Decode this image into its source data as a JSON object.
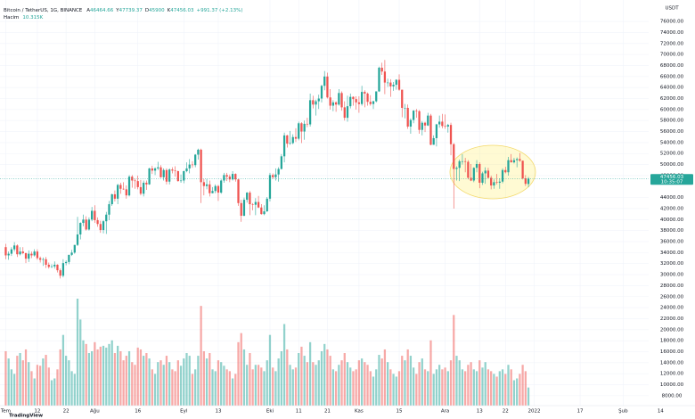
{
  "chart_data": {
    "type": "candlestick",
    "symbol": "Bitcoin / TetherUS, 1G, BINANCE",
    "ohlc_labels": [
      "A",
      "Y",
      "D",
      "K"
    ],
    "change_label": "+991.37 (+2.13%)",
    "volume_label": "Hacim",
    "volume_value_label": "10.315K",
    "currency": "USDT",
    "countdown": "10:35:07",
    "watermark": "TradingView",
    "up_color": "#26a69a",
    "down_color": "#ef5350",
    "grid": true,
    "xlim": [
      -2,
      240
    ],
    "xticks": [
      {
        "value": 0,
        "label": "Tem"
      },
      {
        "value": 11,
        "label": "12"
      },
      {
        "value": 21,
        "label": "22"
      },
      {
        "value": 31,
        "label": "Ağu"
      },
      {
        "value": 46,
        "label": "16"
      },
      {
        "value": 62,
        "label": "Eyl"
      },
      {
        "value": 74,
        "label": "13"
      },
      {
        "value": 92,
        "label": "Eki"
      },
      {
        "value": 102,
        "label": "11"
      },
      {
        "value": 112,
        "label": "21"
      },
      {
        "value": 123,
        "label": "Kas"
      },
      {
        "value": 137,
        "label": "15"
      },
      {
        "value": 153,
        "label": "Ara"
      },
      {
        "value": 165,
        "label": "13"
      },
      {
        "value": 174,
        "label": "22"
      },
      {
        "value": 184,
        "label": "2022"
      },
      {
        "value": 200,
        "label": "17"
      },
      {
        "value": 215,
        "label": "Şub"
      },
      {
        "value": 228,
        "label": "14"
      }
    ],
    "ylim": [
      6200,
      79900
    ],
    "yticks": [
      {
        "value": 8000,
        "label": "8000.00"
      },
      {
        "value": 10000,
        "label": "10000.00"
      },
      {
        "value": 12000,
        "label": "12000.00"
      },
      {
        "value": 14000,
        "label": "14000.00"
      },
      {
        "value": 16000,
        "label": "16000.00"
      },
      {
        "value": 18000,
        "label": "18000.00"
      },
      {
        "value": 20000,
        "label": "20000.00"
      },
      {
        "value": 22000,
        "label": "22000.00"
      },
      {
        "value": 24000,
        "label": "24000.00"
      },
      {
        "value": 26000,
        "label": "26000.00"
      },
      {
        "value": 28000,
        "label": "28000.00"
      },
      {
        "value": 30000,
        "label": "30000.00"
      },
      {
        "value": 32000,
        "label": "32000.00"
      },
      {
        "value": 34000,
        "label": "34000.00"
      },
      {
        "value": 36000,
        "label": "36000.00"
      },
      {
        "value": 38000,
        "label": "38000.00"
      },
      {
        "value": 40000,
        "label": "40000.00"
      },
      {
        "value": 42000,
        "label": "42000.00"
      },
      {
        "value": 44000,
        "label": "44000.00"
      },
      {
        "value": 48000,
        "label": "48000.00"
      },
      {
        "value": 50000,
        "label": "50000.00"
      },
      {
        "value": 52000,
        "label": "52000.00"
      },
      {
        "value": 54000,
        "label": "54000.00"
      },
      {
        "value": 56000,
        "label": "56000.00"
      },
      {
        "value": 58000,
        "label": "58000.00"
      },
      {
        "value": 60000,
        "label": "60000.00"
      },
      {
        "value": 62000,
        "label": "62000.00"
      },
      {
        "value": 64000,
        "label": "64000.00"
      },
      {
        "value": 66000,
        "label": "66000.00"
      },
      {
        "value": 68000,
        "label": "68000.00"
      },
      {
        "value": 70000,
        "label": "70000.00"
      },
      {
        "value": 72000,
        "label": "72000.00"
      },
      {
        "value": 74000,
        "label": "74000.00"
      },
      {
        "value": 76000,
        "label": "76000.00"
      }
    ],
    "candles": [
      [
        35000,
        35600,
        32800,
        33500
      ],
      [
        33500,
        34200,
        32700,
        33800
      ],
      [
        33800,
        35000,
        33400,
        34600
      ],
      [
        34600,
        35900,
        34200,
        35300
      ],
      [
        35300,
        35500,
        33200,
        33700
      ],
      [
        33700,
        35000,
        33500,
        34200
      ],
      [
        34200,
        35000,
        33700,
        33900
      ],
      [
        33900,
        34000,
        32100,
        32900
      ],
      [
        32900,
        34400,
        32300,
        33800
      ],
      [
        33800,
        34200,
        33000,
        33500
      ],
      [
        33500,
        34600,
        33300,
        34200
      ],
      [
        34200,
        34600,
        32700,
        33000
      ],
      [
        33000,
        33300,
        32200,
        32700
      ],
      [
        32700,
        33100,
        31600,
        32800
      ],
      [
        32800,
        33200,
        31200,
        31800
      ],
      [
        31800,
        32200,
        31100,
        31400
      ],
      [
        31400,
        31900,
        31200,
        31500
      ],
      [
        31500,
        32400,
        31100,
        31800
      ],
      [
        31800,
        31900,
        30400,
        30800
      ],
      [
        30800,
        31100,
        29300,
        29800
      ],
      [
        29800,
        32800,
        29500,
        32100
      ],
      [
        32100,
        32600,
        31700,
        32300
      ],
      [
        32300,
        33600,
        31900,
        33600
      ],
      [
        33600,
        34500,
        33400,
        34000
      ],
      [
        34000,
        35400,
        33800,
        35400
      ],
      [
        35400,
        40500,
        35200,
        37300
      ],
      [
        37300,
        39500,
        36400,
        39400
      ],
      [
        39400,
        40900,
        38800,
        40000
      ],
      [
        40000,
        40600,
        38000,
        38200
      ],
      [
        38200,
        40400,
        38000,
        40000
      ],
      [
        40000,
        42300,
        39700,
        41600
      ],
      [
        41600,
        42600,
        39400,
        39900
      ],
      [
        39900,
        40400,
        38700,
        39200
      ],
      [
        39200,
        39800,
        37600,
        38100
      ],
      [
        38100,
        39900,
        37500,
        39700
      ],
      [
        39700,
        41400,
        37400,
        40900
      ],
      [
        40900,
        43400,
        39900,
        42800
      ],
      [
        42800,
        44700,
        42500,
        44600
      ],
      [
        44600,
        45300,
        43300,
        43800
      ],
      [
        43800,
        46500,
        42800,
        46300
      ],
      [
        46300,
        46700,
        44700,
        45600
      ],
      [
        45600,
        46800,
        45400,
        45500
      ],
      [
        45500,
        46200,
        43800,
        44400
      ],
      [
        44400,
        48100,
        44200,
        47800
      ],
      [
        47800,
        48100,
        45800,
        47100
      ],
      [
        47100,
        47400,
        45600,
        47000
      ],
      [
        47000,
        48000,
        45500,
        45900
      ],
      [
        45900,
        47200,
        44400,
        44700
      ],
      [
        44700,
        47100,
        44200,
        46700
      ],
      [
        46700,
        47100,
        45400,
        46400
      ],
      [
        46400,
        49400,
        46300,
        49300
      ],
      [
        49300,
        49800,
        48300,
        48900
      ],
      [
        48900,
        49500,
        48100,
        49300
      ],
      [
        49300,
        50500,
        49000,
        49500
      ],
      [
        49500,
        49900,
        47600,
        47700
      ],
      [
        47700,
        49300,
        47100,
        49000
      ],
      [
        49000,
        49300,
        46400,
        46900
      ],
      [
        46900,
        49300,
        46400,
        49100
      ],
      [
        49100,
        49500,
        48400,
        48900
      ],
      [
        48900,
        49700,
        47800,
        48800
      ],
      [
        48800,
        48900,
        46900,
        47000
      ],
      [
        47000,
        48200,
        46700,
        47100
      ],
      [
        47100,
        48900,
        46600,
        48800
      ],
      [
        48800,
        50400,
        48600,
        49300
      ],
      [
        49300,
        51000,
        48400,
        50000
      ],
      [
        50000,
        50600,
        49400,
        49900
      ],
      [
        49900,
        51900,
        49500,
        51800
      ],
      [
        51800,
        52900,
        50900,
        52700
      ],
      [
        52700,
        52900,
        43000,
        46800
      ],
      [
        46800,
        47400,
        44400,
        46100
      ],
      [
        46100,
        47400,
        45500,
        46400
      ],
      [
        46400,
        47100,
        44200,
        44800
      ],
      [
        44800,
        45900,
        44800,
        45200
      ],
      [
        45200,
        46400,
        44800,
        46100
      ],
      [
        46100,
        46300,
        43400,
        44900
      ],
      [
        44900,
        47300,
        44700,
        47100
      ],
      [
        47100,
        48500,
        46700,
        48100
      ],
      [
        48100,
        48500,
        47000,
        47800
      ],
      [
        47800,
        48200,
        46800,
        47300
      ],
      [
        47300,
        48800,
        47100,
        48300
      ],
      [
        48300,
        48400,
        46900,
        47300
      ],
      [
        47300,
        47400,
        42500,
        43000
      ],
      [
        43000,
        43600,
        39600,
        40700
      ],
      [
        40700,
        44000,
        40600,
        43600
      ],
      [
        43600,
        45000,
        43100,
        44900
      ],
      [
        44900,
        45200,
        40800,
        42800
      ],
      [
        42800,
        43000,
        41700,
        42700
      ],
      [
        42700,
        43900,
        40800,
        43200
      ],
      [
        43200,
        44300,
        42100,
        42200
      ],
      [
        42200,
        42800,
        40900,
        41000
      ],
      [
        41000,
        42600,
        40800,
        41500
      ],
      [
        41500,
        44100,
        41400,
        43800
      ],
      [
        43800,
        48500,
        43300,
        48100
      ],
      [
        48100,
        48400,
        47400,
        47700
      ],
      [
        47700,
        49300,
        47100,
        48200
      ],
      [
        48200,
        49500,
        46900,
        49200
      ],
      [
        49200,
        51900,
        49100,
        51500
      ],
      [
        51500,
        55800,
        50400,
        55300
      ],
      [
        55300,
        55400,
        53100,
        53800
      ],
      [
        53800,
        56100,
        53600,
        53900
      ],
      [
        53900,
        55500,
        53700,
        55000
      ],
      [
        55000,
        56600,
        54100,
        54700
      ],
      [
        54700,
        57800,
        54400,
        57500
      ],
      [
        57500,
        57700,
        53900,
        56000
      ],
      [
        56000,
        58000,
        54500,
        57400
      ],
      [
        57400,
        58500,
        56800,
        57300
      ],
      [
        57300,
        62900,
        56900,
        61700
      ],
      [
        61700,
        62500,
        60200,
        60900
      ],
      [
        60900,
        61800,
        58900,
        61500
      ],
      [
        61500,
        62700,
        60100,
        62000
      ],
      [
        62000,
        64500,
        61300,
        64300
      ],
      [
        64300,
        67000,
        63500,
        66000
      ],
      [
        66000,
        66700,
        62000,
        62200
      ],
      [
        62200,
        63700,
        60000,
        60700
      ],
      [
        60700,
        61700,
        59700,
        61300
      ],
      [
        61300,
        61500,
        59600,
        60900
      ],
      [
        60900,
        63700,
        60700,
        63000
      ],
      [
        63000,
        63300,
        59800,
        60400
      ],
      [
        60400,
        61500,
        58000,
        58500
      ],
      [
        58500,
        62500,
        57800,
        60600
      ],
      [
        60600,
        62900,
        60200,
        62300
      ],
      [
        62300,
        62400,
        60700,
        61900
      ],
      [
        61900,
        62400,
        60000,
        61300
      ],
      [
        61300,
        62400,
        59400,
        61000
      ],
      [
        61000,
        64300,
        60700,
        63200
      ],
      [
        63200,
        63500,
        60400,
        62900
      ],
      [
        62900,
        63100,
        60700,
        61400
      ],
      [
        61400,
        62600,
        60700,
        61000
      ],
      [
        61000,
        61600,
        60100,
        61500
      ],
      [
        61500,
        63300,
        61300,
        63300
      ],
      [
        63300,
        67800,
        63200,
        67600
      ],
      [
        67600,
        68500,
        66300,
        66900
      ],
      [
        66900,
        69000,
        62800,
        64900
      ],
      [
        64900,
        65600,
        64100,
        64900
      ],
      [
        64900,
        65500,
        62300,
        64200
      ],
      [
        64200,
        65000,
        63400,
        64500
      ],
      [
        64500,
        65500,
        63600,
        65400
      ],
      [
        65400,
        66400,
        63400,
        63600
      ],
      [
        63600,
        63600,
        58600,
        60300
      ],
      [
        60300,
        61000,
        58400,
        60300
      ],
      [
        60300,
        60900,
        56500,
        56900
      ],
      [
        56900,
        58400,
        55600,
        58100
      ],
      [
        58100,
        59900,
        57500,
        59800
      ],
      [
        59800,
        60100,
        58500,
        59700
      ],
      [
        59700,
        59900,
        55600,
        56300
      ],
      [
        56300,
        57900,
        55300,
        57600
      ],
      [
        57600,
        57800,
        55900,
        57100
      ],
      [
        57100,
        59400,
        57000,
        58900
      ],
      [
        58900,
        59200,
        53500,
        53600
      ],
      [
        53600,
        55300,
        53600,
        54800
      ],
      [
        54800,
        57400,
        53300,
        57300
      ],
      [
        57300,
        58900,
        56700,
        57800
      ],
      [
        57800,
        59200,
        56600,
        57000
      ],
      [
        57000,
        59100,
        56500,
        56900
      ],
      [
        56900,
        57400,
        55800,
        57200
      ],
      [
        57200,
        57600,
        51700,
        53700
      ],
      [
        53700,
        53900,
        42000,
        49200
      ],
      [
        49200,
        49700,
        47100,
        49400
      ],
      [
        49400,
        50900,
        47000,
        50600
      ],
      [
        50600,
        51900,
        50000,
        50600
      ],
      [
        50600,
        51200,
        48600,
        50500
      ],
      [
        50500,
        50800,
        47300,
        47600
      ],
      [
        47600,
        50100,
        47000,
        47100
      ],
      [
        47100,
        49500,
        46800,
        49400
      ],
      [
        49400,
        50800,
        48600,
        50100
      ],
      [
        50100,
        50400,
        45700,
        46700
      ],
      [
        46700,
        48700,
        46300,
        48400
      ],
      [
        48400,
        49500,
        46500,
        48900
      ],
      [
        48900,
        49400,
        47500,
        47600
      ],
      [
        47600,
        48000,
        45500,
        46200
      ],
      [
        46200,
        47300,
        45600,
        46800
      ],
      [
        46800,
        48300,
        46400,
        46700
      ],
      [
        46700,
        47500,
        45600,
        46900
      ],
      [
        46900,
        49300,
        46600,
        49000
      ],
      [
        49000,
        49600,
        48400,
        48600
      ],
      [
        48600,
        51400,
        48000,
        50800
      ],
      [
        50800,
        51900,
        50400,
        50400
      ],
      [
        50400,
        51200,
        50200,
        50800
      ],
      [
        50800,
        51300,
        49500,
        51000
      ],
      [
        51000,
        52100,
        50500,
        50700
      ],
      [
        50700,
        50700,
        47300,
        47500
      ],
      [
        47500,
        48100,
        46100,
        46500
      ],
      [
        46464.66,
        47739.37,
        45900.0,
        47456.03
      ]
    ],
    "volumes": [
      60,
      52,
      40,
      35,
      55,
      58,
      50,
      62,
      48,
      38,
      30,
      45,
      44,
      52,
      56,
      42,
      28,
      30,
      40,
      62,
      78,
      55,
      50,
      38,
      35,
      118,
      95,
      72,
      68,
      58,
      60,
      70,
      62,
      65,
      66,
      64,
      68,
      72,
      58,
      66,
      60,
      50,
      55,
      60,
      48,
      45,
      64,
      62,
      55,
      58,
      52,
      40,
      35,
      48,
      50,
      45,
      55,
      48,
      40,
      38,
      50,
      44,
      52,
      58,
      55,
      35,
      40,
      55,
      110,
      60,
      52,
      58,
      40,
      38,
      50,
      48,
      44,
      40,
      38,
      30,
      35,
      70,
      80,
      62,
      45,
      58,
      40,
      45,
      45,
      42,
      38,
      50,
      78,
      42,
      38,
      52,
      60,
      90,
      62,
      45,
      40,
      42,
      58,
      65,
      55,
      48,
      70,
      48,
      45,
      50,
      60,
      68,
      62,
      55,
      40,
      38,
      45,
      50,
      58,
      48,
      42,
      38,
      40,
      50,
      52,
      48,
      45,
      38,
      32,
      40,
      56,
      52,
      62,
      48,
      40,
      35,
      32,
      38,
      55,
      50,
      62,
      55,
      42,
      35,
      48,
      52,
      40,
      38,
      72,
      35,
      40,
      45,
      40,
      42,
      38,
      50,
      100,
      55,
      50,
      40,
      38,
      45,
      48,
      40,
      38,
      50,
      42,
      48,
      40,
      38,
      35,
      32,
      38,
      40,
      35,
      45,
      40,
      28,
      30,
      35,
      45,
      38,
      20
    ]
  }
}
